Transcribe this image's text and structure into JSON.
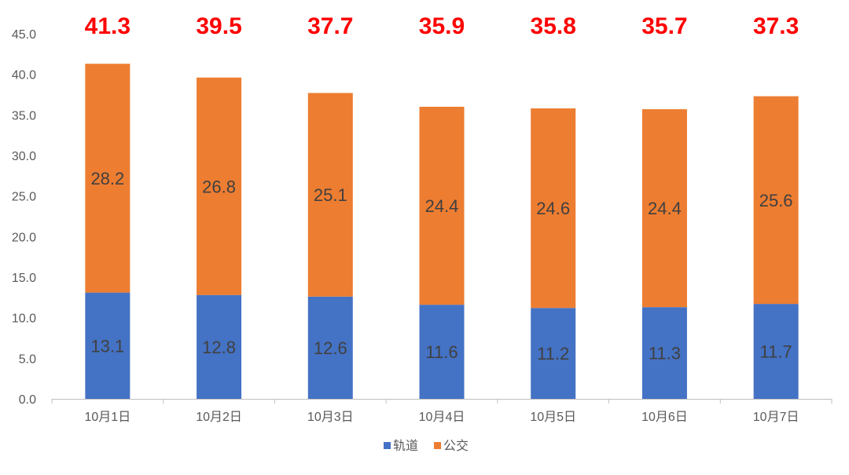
{
  "chart_data": {
    "type": "stacked-bar",
    "categories": [
      "10月1日",
      "10月2日",
      "10月3日",
      "10月4日",
      "10月5日",
      "10月6日",
      "10月7日"
    ],
    "series": [
      {
        "name": "轨道",
        "values": [
          13.1,
          12.8,
          12.6,
          11.6,
          11.2,
          11.3,
          11.7
        ],
        "color": "#4472C4"
      },
      {
        "name": "公交",
        "values": [
          28.2,
          26.8,
          25.1,
          24.4,
          24.6,
          24.4,
          25.6
        ],
        "color": "#ED7D31"
      }
    ],
    "totals": [
      "41.3",
      "39.5",
      "37.7",
      "35.9",
      "35.8",
      "35.7",
      "37.3"
    ],
    "total_label_color": "#FF0000",
    "ylim": [
      0,
      45
    ],
    "ytick_step": 5,
    "ytick_labels": [
      "0.0",
      "5.0",
      "10.0",
      "15.0",
      "20.0",
      "25.0",
      "30.0",
      "35.0",
      "40.0",
      "45.0"
    ],
    "legend_position": "bottom-center",
    "gridlines": false,
    "title": "",
    "xlabel": "",
    "ylabel": ""
  }
}
